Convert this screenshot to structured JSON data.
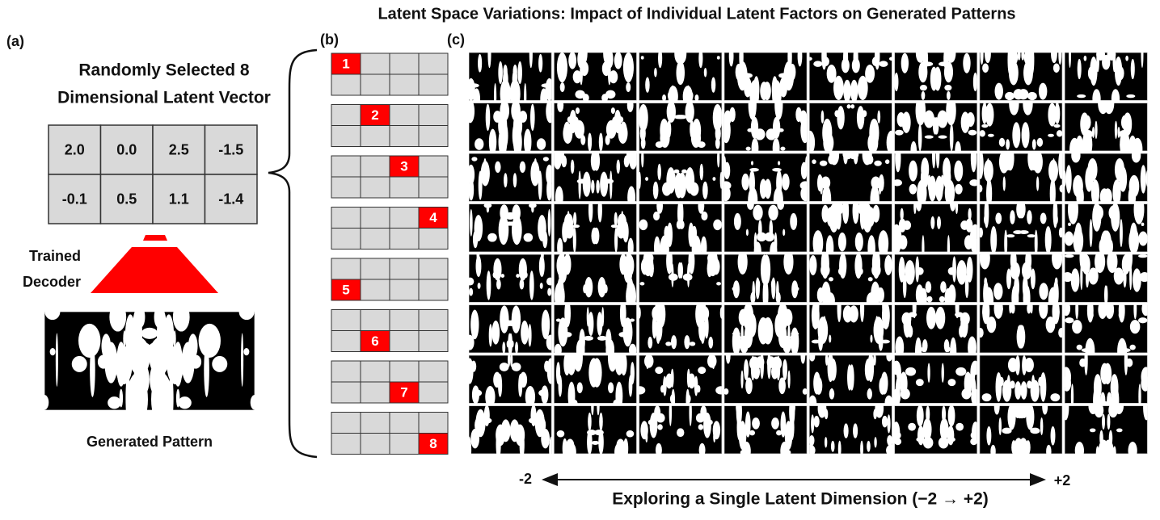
{
  "title": "Latent Space Variations: Impact of Individual Latent Factors on Generated Patterns",
  "panel_a": {
    "label": "(a)",
    "heading": [
      "Randomly Selected 8",
      "Dimensional Latent Vector"
    ],
    "vector": [
      [
        "2.0",
        "0.0",
        "2.5",
        "-1.5"
      ],
      [
        "-0.1",
        "0.5",
        "1.1",
        "-1.4"
      ]
    ],
    "decoder_label": [
      "Trained",
      "Decoder"
    ],
    "caption": "Generated Pattern"
  },
  "panel_b": {
    "label": "(b)",
    "dimensions": [
      "1",
      "2",
      "3",
      "4",
      "5",
      "6",
      "7",
      "8"
    ]
  },
  "panel_c": {
    "label": "(c)",
    "axis_start": "-2",
    "axis_end": "+2",
    "axis_label": "Exploring a Single Latent Dimension (−2 → +2)"
  }
}
